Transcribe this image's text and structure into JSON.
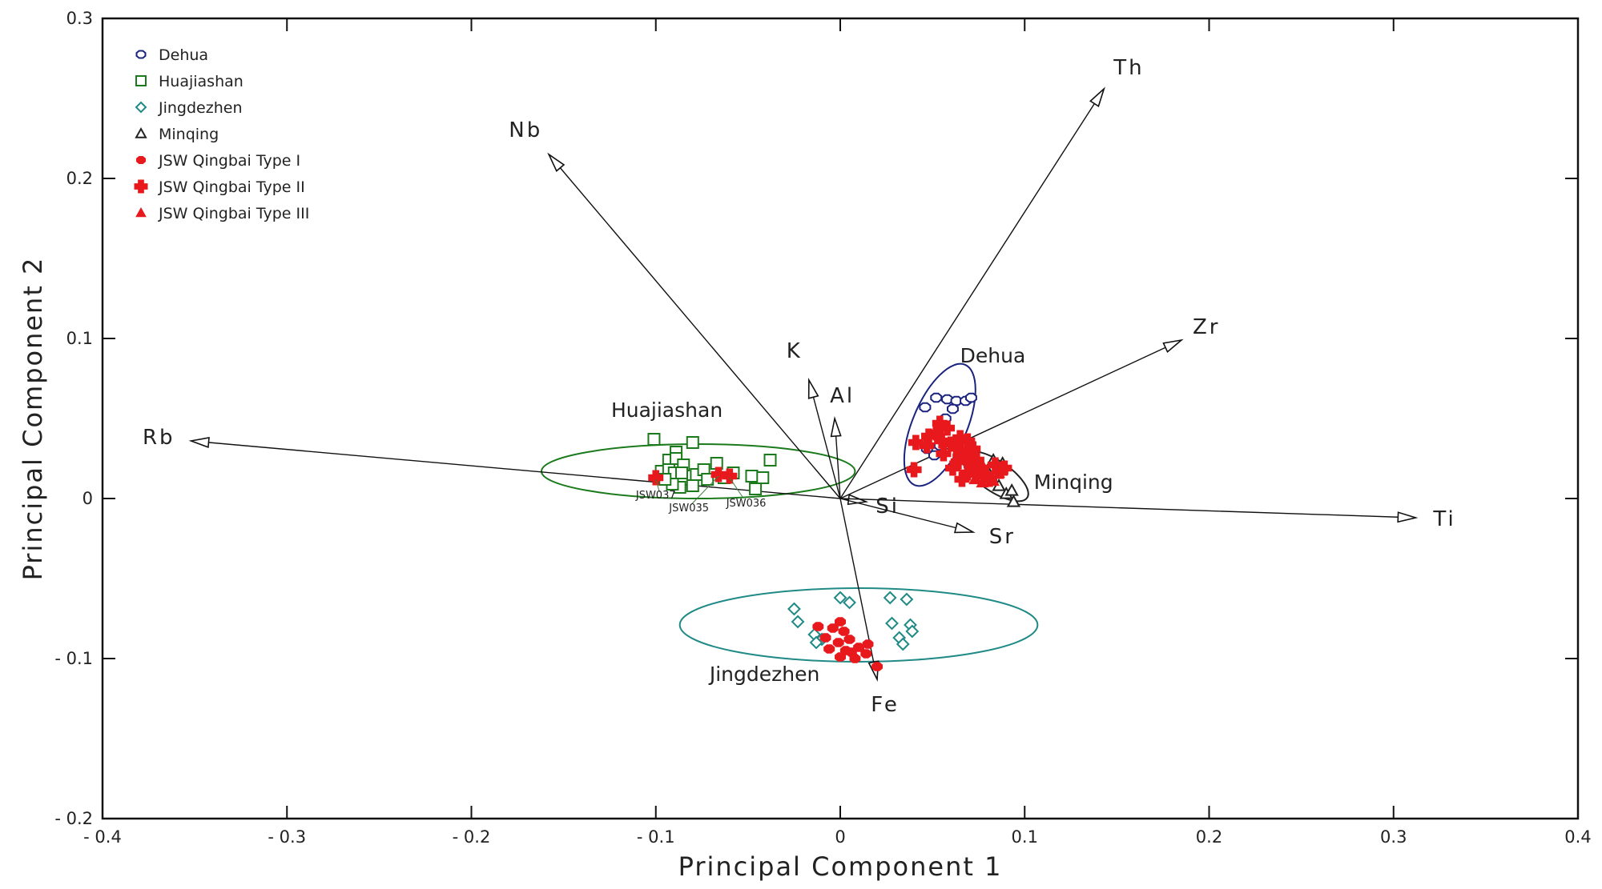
{
  "chart_data": {
    "type": "scatter",
    "subtype": "pca-biplot",
    "xlabel": "Principal Component 1",
    "ylabel": "Principal Component 2",
    "xlim": [
      -0.4,
      0.4
    ],
    "ylim": [
      -0.2,
      0.3
    ],
    "x_ticks": [
      -0.4,
      -0.3,
      -0.2,
      -0.1,
      0,
      0.1,
      0.2,
      0.3,
      0.4
    ],
    "y_ticks": [
      -0.2,
      -0.1,
      0,
      0.1,
      0.2,
      0.3
    ],
    "x_tick_labels": [
      "- 0.4",
      "- 0.3",
      "- 0.2",
      "- 0.1",
      "0",
      "0.1",
      "0.2",
      "0.3",
      "0.4"
    ],
    "y_tick_labels": [
      "- 0.2",
      "- 0.1",
      "0",
      "0.1",
      "0.2",
      "0.3"
    ],
    "grid": false,
    "legend_position": "top-left",
    "legend": [
      {
        "name": "Dehua",
        "marker": "open-octagon",
        "color": "#1a237e"
      },
      {
        "name": "Huajiashan",
        "marker": "open-square",
        "color": "#1b7a1b"
      },
      {
        "name": "Jingdezhen",
        "marker": "open-diamond",
        "color": "#1f8a86"
      },
      {
        "name": "Minqing",
        "marker": "open-triangle",
        "color": "#222222"
      },
      {
        "name": "JSW Qingbai Type I",
        "marker": "filled-octagon",
        "color": "#e8191c"
      },
      {
        "name": "JSW Qingbai Type II",
        "marker": "filled-cross",
        "color": "#e8191c"
      },
      {
        "name": "JSW Qingbai Type III",
        "marker": "filled-triangle",
        "color": "#e8191c"
      }
    ],
    "loadings": [
      {
        "name": "Th",
        "x": 0.143,
        "y": 0.256
      },
      {
        "name": "Nb",
        "x": -0.158,
        "y": 0.215
      },
      {
        "name": "Zr",
        "x": 0.185,
        "y": 0.099
      },
      {
        "name": "K",
        "x": -0.017,
        "y": 0.074
      },
      {
        "name": "Al",
        "x": -0.003,
        "y": 0.05
      },
      {
        "name": "Rb",
        "x": -0.352,
        "y": 0.036
      },
      {
        "name": "Si",
        "x": 0.014,
        "y": -0.002
      },
      {
        "name": "Sr",
        "x": 0.072,
        "y": -0.021
      },
      {
        "name": "Ti",
        "x": 0.312,
        "y": -0.012
      },
      {
        "name": "Fe",
        "x": 0.02,
        "y": -0.113
      }
    ],
    "ellipses": [
      {
        "name": "Dehua",
        "label": "Dehua",
        "cx": 0.054,
        "cy": 0.046,
        "rx": 0.04,
        "ry": 0.015,
        "angle_deg": 70,
        "color": "#1a237e"
      },
      {
        "name": "Huajiashan",
        "label": "Huajiashan",
        "cx": -0.077,
        "cy": 0.017,
        "rx": 0.085,
        "ry": 0.017,
        "angle_deg": 0,
        "color": "#1b7a1b"
      },
      {
        "name": "Jingdezhen",
        "label": "Jingdezhen",
        "cx": 0.01,
        "cy": -0.079,
        "rx": 0.097,
        "ry": 0.023,
        "angle_deg": 0,
        "color": "#1f8a86"
      },
      {
        "name": "Minqing",
        "label": "Minqing",
        "cx": 0.084,
        "cy": 0.014,
        "rx": 0.022,
        "ry": 0.009,
        "angle_deg": -38,
        "color": "#222222"
      }
    ],
    "series": [
      {
        "name": "Dehua",
        "points": [
          [
            0.046,
            0.057
          ],
          [
            0.052,
            0.063
          ],
          [
            0.058,
            0.062
          ],
          [
            0.063,
            0.061
          ],
          [
            0.068,
            0.061
          ],
          [
            0.071,
            0.063
          ],
          [
            0.057,
            0.05
          ],
          [
            0.061,
            0.056
          ],
          [
            0.047,
            0.031
          ],
          [
            0.051,
            0.027
          ],
          [
            0.054,
            0.033
          ]
        ]
      },
      {
        "name": "Huajiashan",
        "points": [
          [
            -0.101,
            0.037
          ],
          [
            -0.08,
            0.035
          ],
          [
            -0.089,
            0.029
          ],
          [
            -0.093,
            0.024
          ],
          [
            -0.089,
            0.025
          ],
          [
            -0.085,
            0.021
          ],
          [
            -0.097,
            0.017
          ],
          [
            -0.093,
            0.018
          ],
          [
            -0.09,
            0.016
          ],
          [
            -0.086,
            0.016
          ],
          [
            -0.078,
            0.015
          ],
          [
            -0.074,
            0.018
          ],
          [
            -0.067,
            0.022
          ],
          [
            -0.058,
            0.016
          ],
          [
            -0.048,
            0.014
          ],
          [
            -0.042,
            0.013
          ],
          [
            -0.038,
            0.024
          ],
          [
            -0.08,
            0.008
          ],
          [
            -0.087,
            0.007
          ],
          [
            -0.091,
            0.009
          ],
          [
            -0.046,
            0.006
          ],
          [
            -0.095,
            0.012
          ],
          [
            -0.072,
            0.012
          ],
          [
            -0.063,
            0.013
          ]
        ]
      },
      {
        "name": "Jingdezhen",
        "points": [
          [
            -0.025,
            -0.069
          ],
          [
            -0.023,
            -0.077
          ],
          [
            0.0,
            -0.062
          ],
          [
            0.005,
            -0.065
          ],
          [
            0.027,
            -0.062
          ],
          [
            0.036,
            -0.063
          ],
          [
            0.028,
            -0.078
          ],
          [
            0.038,
            -0.079
          ],
          [
            0.039,
            -0.083
          ],
          [
            0.032,
            -0.087
          ],
          [
            0.034,
            -0.091
          ],
          [
            -0.014,
            -0.085
          ],
          [
            -0.01,
            -0.088
          ],
          [
            -0.013,
            -0.09
          ]
        ]
      },
      {
        "name": "Minqing",
        "points": [
          [
            0.083,
            0.024
          ],
          [
            0.088,
            0.022
          ],
          [
            0.081,
            0.015
          ],
          [
            0.086,
            0.008
          ],
          [
            0.09,
            0.003
          ],
          [
            0.094,
            -0.002
          ],
          [
            0.093,
            0.005
          ]
        ]
      },
      {
        "name": "JSW Qingbai Type I",
        "points": [
          [
            -0.012,
            -0.08
          ],
          [
            -0.004,
            -0.081
          ],
          [
            0.0,
            -0.077
          ],
          [
            0.002,
            -0.083
          ],
          [
            -0.008,
            -0.087
          ],
          [
            -0.001,
            -0.09
          ],
          [
            0.005,
            -0.088
          ],
          [
            -0.006,
            -0.094
          ],
          [
            0.003,
            -0.095
          ],
          [
            0.008,
            -0.1
          ],
          [
            0.014,
            -0.097
          ],
          [
            0.01,
            -0.093
          ],
          [
            0.015,
            -0.091
          ],
          [
            0.02,
            -0.105
          ],
          [
            0.0,
            -0.099
          ],
          [
            0.006,
            -0.096
          ]
        ]
      },
      {
        "name": "JSW Qingbai Type II",
        "points": [
          [
            -0.1,
            0.013
          ],
          [
            -0.066,
            0.015
          ],
          [
            -0.06,
            0.014
          ],
          [
            0.054,
            0.047
          ],
          [
            0.058,
            0.044
          ],
          [
            0.052,
            0.041
          ],
          [
            0.048,
            0.039
          ],
          [
            0.041,
            0.035
          ],
          [
            0.047,
            0.033
          ],
          [
            0.055,
            0.036
          ],
          [
            0.06,
            0.034
          ],
          [
            0.065,
            0.038
          ],
          [
            0.069,
            0.036
          ],
          [
            0.063,
            0.032
          ],
          [
            0.072,
            0.031
          ],
          [
            0.068,
            0.027
          ],
          [
            0.064,
            0.023
          ],
          [
            0.074,
            0.024
          ],
          [
            0.076,
            0.019
          ],
          [
            0.061,
            0.019
          ],
          [
            0.056,
            0.028
          ],
          [
            0.04,
            0.018
          ],
          [
            0.079,
            0.015
          ],
          [
            0.084,
            0.021
          ],
          [
            0.087,
            0.017
          ],
          [
            0.081,
            0.012
          ],
          [
            0.074,
            0.015
          ],
          [
            0.069,
            0.016
          ],
          [
            0.065,
            0.026
          ],
          [
            0.066,
            0.012
          ],
          [
            0.089,
            0.019
          ],
          [
            0.071,
            0.021
          ]
        ]
      },
      {
        "name": "JSW Qingbai Type III",
        "points": [
          [
            0.073,
            0.012
          ],
          [
            0.077,
            0.01
          ],
          [
            0.08,
            0.013
          ],
          [
            0.083,
            0.011
          ],
          [
            0.078,
            0.019
          ],
          [
            0.086,
            0.016
          ],
          [
            0.075,
            0.015
          ]
        ]
      }
    ],
    "sample_labels": [
      {
        "text": "JSW037",
        "x": -0.1,
        "y": 0.0
      },
      {
        "text": "JSW035",
        "x": -0.082,
        "y": -0.008
      },
      {
        "text": "JSW036",
        "x": -0.051,
        "y": -0.005
      }
    ],
    "sample_leaders": [
      {
        "x1": -0.1,
        "y1": 0.012,
        "x2": -0.098,
        "y2": 0.004
      },
      {
        "x1": -0.066,
        "y1": 0.014,
        "x2": -0.081,
        "y2": -0.004
      },
      {
        "x1": -0.06,
        "y1": 0.013,
        "x2": -0.053,
        "y2": 0.001
      }
    ]
  }
}
